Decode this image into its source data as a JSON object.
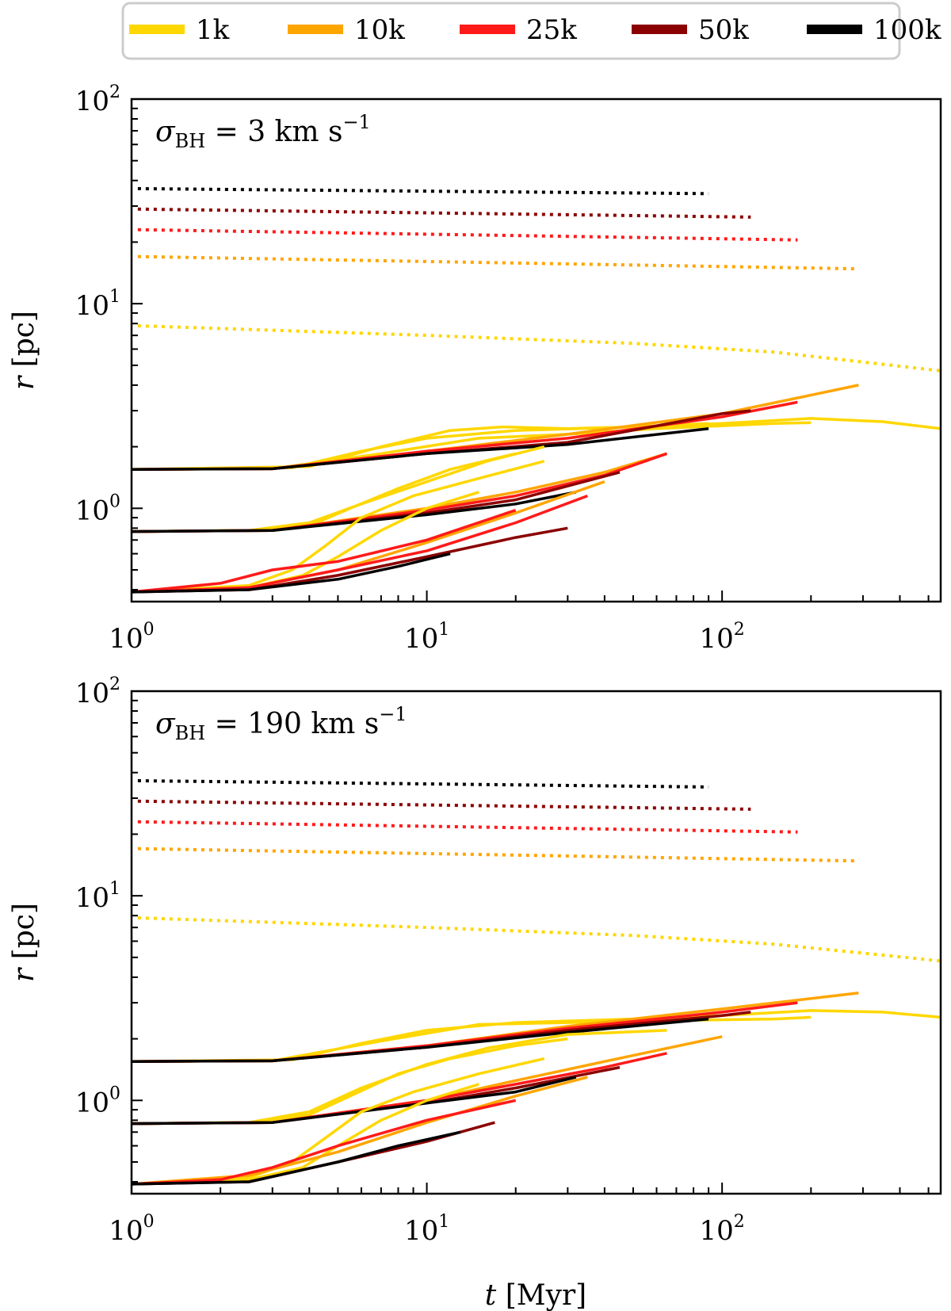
{
  "chart_data": {
    "type": "line",
    "legend": {
      "placement": "top-center",
      "entries": [
        {
          "label": "1k",
          "color": "#FFD700"
        },
        {
          "label": "10k",
          "color": "#FFA500"
        },
        {
          "label": "25k",
          "color": "#FF1A1A"
        },
        {
          "label": "50k",
          "color": "#8B0000"
        },
        {
          "label": "100k",
          "color": "#000000"
        }
      ]
    },
    "panels": [
      {
        "annotation": {
          "base": "σ",
          "sub": "BH",
          "rest": " = 3 km s",
          "sup": "−1"
        },
        "xlabel": "t [Myr]",
        "ylabel": "r [pc]",
        "xscale": "log",
        "yscale": "log",
        "xlim": [
          1,
          550
        ],
        "ylim": [
          0.35,
          100
        ],
        "xticks": [
          {
            "base": "10",
            "exp": "0"
          },
          {
            "base": "10",
            "exp": "1"
          },
          {
            "base": "10",
            "exp": "2"
          }
        ],
        "yticks": [
          {
            "base": "10",
            "exp": "0"
          },
          {
            "base": "10",
            "exp": "1"
          },
          {
            "base": "10",
            "exp": "2"
          }
        ],
        "dotted_series": [
          {
            "name": "100k",
            "x": [
              1.05,
              90
            ],
            "y": [
              36.5,
              34.5
            ]
          },
          {
            "name": "50k",
            "x": [
              1.05,
              125
            ],
            "y": [
              29,
              26.5
            ]
          },
          {
            "name": "25k",
            "x": [
              1.05,
              180
            ],
            "y": [
              23,
              20.5
            ]
          },
          {
            "name": "10k",
            "x": [
              1.05,
              290
            ],
            "y": [
              17,
              14.8
            ]
          },
          {
            "name": "1k",
            "x": [
              1.05,
              10,
              50,
              150,
              550
            ],
            "y": [
              7.8,
              7.0,
              6.4,
              5.8,
              4.7
            ]
          }
        ],
        "solid_series": [
          {
            "name": "1k",
            "x": [
              1.0,
              3.0,
              7.0,
              15.0,
              30.0,
              60.0,
              150.0,
              200.0
            ],
            "y": [
              1.55,
              1.56,
              1.85,
              2.2,
              2.3,
              2.45,
              2.6,
              2.62
            ]
          },
          {
            "name": "1k",
            "x": [
              1.0,
              4.0,
              7.0,
              12.0,
              18.0,
              30.0,
              50.0,
              90.0
            ],
            "y": [
              1.55,
              1.6,
              2.0,
              2.4,
              2.5,
              2.45,
              2.5,
              2.6
            ]
          },
          {
            "name": "1k",
            "x": [
              1.0,
              3.5,
              6.0,
              10.0,
              20.0,
              50.0,
              100.0,
              200.0,
              350.0,
              550.0
            ],
            "y": [
              1.55,
              1.58,
              1.9,
              2.2,
              2.4,
              2.5,
              2.6,
              2.75,
              2.65,
              2.45
            ]
          },
          {
            "name": "10k",
            "x": [
              1.0,
              3.0,
              10.0,
              30.0,
              100.0,
              290.0
            ],
            "y": [
              1.55,
              1.56,
              1.9,
              2.3,
              2.9,
              4.0
            ]
          },
          {
            "name": "25k",
            "x": [
              1.0,
              3.0,
              10.0,
              30.0,
              100.0,
              180.0
            ],
            "y": [
              1.55,
              1.56,
              1.9,
              2.2,
              2.8,
              3.3
            ]
          },
          {
            "name": "50k",
            "x": [
              1.0,
              3.0,
              10.0,
              30.0,
              100.0,
              125.0
            ],
            "y": [
              1.55,
              1.56,
              1.85,
              2.1,
              2.9,
              3.0
            ]
          },
          {
            "name": "100k",
            "x": [
              1.0,
              3.0,
              10.0,
              30.0,
              90.0
            ],
            "y": [
              1.55,
              1.56,
              1.85,
              2.05,
              2.45
            ]
          },
          {
            "name": "1k",
            "x": [
              1.0,
              2.5,
              4.0,
              6.0,
              10.0,
              16.0,
              25.0
            ],
            "y": [
              0.77,
              0.78,
              0.85,
              1.05,
              1.35,
              1.7,
              2.0
            ]
          },
          {
            "name": "1k",
            "x": [
              1.0,
              2.5,
              4.0,
              5.5,
              8.0,
              12.0,
              20.0
            ],
            "y": [
              0.77,
              0.78,
              0.82,
              1.0,
              1.25,
              1.55,
              1.85
            ]
          },
          {
            "name": "10k",
            "x": [
              1.0,
              3.0,
              10.0,
              20.0,
              40.0,
              65.0
            ],
            "y": [
              0.77,
              0.78,
              1.0,
              1.2,
              1.5,
              1.85
            ]
          },
          {
            "name": "25k",
            "x": [
              1.0,
              3.0,
              10.0,
              20.0,
              40.0,
              65.0
            ],
            "y": [
              0.77,
              0.78,
              0.98,
              1.15,
              1.45,
              1.85
            ]
          },
          {
            "name": "50k",
            "x": [
              1.0,
              3.0,
              10.0,
              20.0,
              45.0
            ],
            "y": [
              0.77,
              0.78,
              0.95,
              1.1,
              1.5
            ]
          },
          {
            "name": "100k",
            "x": [
              1.0,
              3.0,
              10.0,
              20.0,
              32.0
            ],
            "y": [
              0.77,
              0.78,
              0.93,
              1.05,
              1.2
            ]
          },
          {
            "name": "1k",
            "x": [
              1.0,
              2.5,
              3.5,
              4.5,
              6.0,
              9.0,
              15.0,
              25.0
            ],
            "y": [
              0.39,
              0.42,
              0.5,
              0.65,
              0.9,
              1.15,
              1.4,
              1.7
            ]
          },
          {
            "name": "1k",
            "x": [
              1.0,
              2.5,
              3.8,
              5.0,
              7.0,
              10.0,
              15.0
            ],
            "y": [
              0.39,
              0.41,
              0.47,
              0.58,
              0.78,
              1.0,
              1.2
            ]
          },
          {
            "name": "10k",
            "x": [
              1.0,
              2.5,
              5.0,
              10.0,
              20.0,
              40.0
            ],
            "y": [
              0.39,
              0.41,
              0.5,
              0.68,
              0.95,
              1.35
            ]
          },
          {
            "name": "25k",
            "x": [
              1.0,
              2.0,
              3.0,
              5.0,
              10.0,
              20.0
            ],
            "y": [
              0.39,
              0.43,
              0.5,
              0.55,
              0.7,
              0.98
            ]
          },
          {
            "name": "25k",
            "x": [
              1.0,
              2.5,
              5.0,
              10.0,
              20.0,
              35.0
            ],
            "y": [
              0.39,
              0.41,
              0.5,
              0.62,
              0.85,
              1.15
            ]
          },
          {
            "name": "50k",
            "x": [
              1.0,
              2.5,
              5.0,
              10.0,
              20.0,
              30.0
            ],
            "y": [
              0.39,
              0.4,
              0.47,
              0.58,
              0.72,
              0.8
            ]
          },
          {
            "name": "100k",
            "x": [
              1.0,
              2.5,
              5.0,
              8.0,
              12.0
            ],
            "y": [
              0.39,
              0.4,
              0.45,
              0.52,
              0.6
            ]
          }
        ]
      },
      {
        "annotation": {
          "base": "σ",
          "sub": "BH",
          "rest": " = 190 km s",
          "sup": "−1"
        },
        "xlabel": "t [Myr]",
        "ylabel": "r [pc]",
        "xscale": "log",
        "yscale": "log",
        "xlim": [
          1,
          550
        ],
        "ylim": [
          0.35,
          100
        ],
        "xticks": [
          {
            "base": "10",
            "exp": "0"
          },
          {
            "base": "10",
            "exp": "1"
          },
          {
            "base": "10",
            "exp": "2"
          }
        ],
        "yticks": [
          {
            "base": "10",
            "exp": "0"
          },
          {
            "base": "10",
            "exp": "1"
          },
          {
            "base": "10",
            "exp": "2"
          }
        ],
        "dotted_series": [
          {
            "name": "100k",
            "x": [
              1.05,
              90
            ],
            "y": [
              36.5,
              34
            ]
          },
          {
            "name": "50k",
            "x": [
              1.05,
              125
            ],
            "y": [
              29,
              26.5
            ]
          },
          {
            "name": "25k",
            "x": [
              1.05,
              180
            ],
            "y": [
              23,
              20.5
            ]
          },
          {
            "name": "10k",
            "x": [
              1.05,
              290
            ],
            "y": [
              17,
              14.8
            ]
          },
          {
            "name": "1k",
            "x": [
              1.05,
              10,
              50,
              150,
              550
            ],
            "y": [
              7.8,
              7.0,
              6.4,
              5.8,
              4.8
            ]
          }
        ],
        "solid_series": [
          {
            "name": "1k",
            "x": [
              1.0,
              3.0,
              7.0,
              15.0,
              30.0,
              60.0,
              150.0,
              200.0
            ],
            "y": [
              1.55,
              1.56,
              1.95,
              2.35,
              2.4,
              2.45,
              2.5,
              2.55
            ]
          },
          {
            "name": "1k",
            "x": [
              1.0,
              3.5,
              6.0,
              10.0,
              20.0,
              50.0,
              100.0,
              200.0,
              350.0,
              550.0
            ],
            "y": [
              1.55,
              1.58,
              1.9,
              2.2,
              2.4,
              2.5,
              2.6,
              2.75,
              2.7,
              2.55
            ]
          },
          {
            "name": "10k",
            "x": [
              1.0,
              3.0,
              10.0,
              30.0,
              100.0,
              290.0
            ],
            "y": [
              1.55,
              1.56,
              1.85,
              2.3,
              2.8,
              3.35
            ]
          },
          {
            "name": "25k",
            "x": [
              1.0,
              3.0,
              10.0,
              30.0,
              100.0,
              180.0
            ],
            "y": [
              1.55,
              1.56,
              1.85,
              2.25,
              2.7,
              3.0
            ]
          },
          {
            "name": "50k",
            "x": [
              1.0,
              3.0,
              10.0,
              30.0,
              100.0,
              125.0
            ],
            "y": [
              1.55,
              1.56,
              1.82,
              2.2,
              2.6,
              2.7
            ]
          },
          {
            "name": "100k",
            "x": [
              1.0,
              3.0,
              10.0,
              30.0,
              90.0
            ],
            "y": [
              1.55,
              1.56,
              1.82,
              2.15,
              2.5
            ]
          },
          {
            "name": "1k",
            "x": [
              1.0,
              2.5,
              4.0,
              6.0,
              10.0,
              16.0,
              30.0,
              65.0
            ],
            "y": [
              0.77,
              0.78,
              0.88,
              1.15,
              1.5,
              1.8,
              2.1,
              2.2
            ]
          },
          {
            "name": "1k",
            "x": [
              1.0,
              2.5,
              4.0,
              5.5,
              8.0,
              12.0,
              20.0,
              30.0
            ],
            "y": [
              0.77,
              0.78,
              0.85,
              1.05,
              1.35,
              1.6,
              1.85,
              2.0
            ]
          },
          {
            "name": "10k",
            "x": [
              1.0,
              3.0,
              10.0,
              20.0,
              40.0,
              100.0
            ],
            "y": [
              0.77,
              0.78,
              1.0,
              1.25,
              1.55,
              2.05
            ]
          },
          {
            "name": "25k",
            "x": [
              1.0,
              3.0,
              10.0,
              20.0,
              40.0,
              65.0
            ],
            "y": [
              0.77,
              0.78,
              1.0,
              1.2,
              1.45,
              1.7
            ]
          },
          {
            "name": "50k",
            "x": [
              1.0,
              3.0,
              10.0,
              20.0,
              45.0
            ],
            "y": [
              0.77,
              0.78,
              0.97,
              1.15,
              1.45
            ]
          },
          {
            "name": "100k",
            "x": [
              1.0,
              3.0,
              10.0,
              20.0,
              32.0
            ],
            "y": [
              0.77,
              0.78,
              0.97,
              1.1,
              1.3
            ]
          },
          {
            "name": "1k",
            "x": [
              1.0,
              2.5,
              3.5,
              4.5,
              6.0,
              9.0,
              15.0,
              25.0
            ],
            "y": [
              0.39,
              0.42,
              0.5,
              0.65,
              0.88,
              1.1,
              1.35,
              1.6
            ]
          },
          {
            "name": "1k",
            "x": [
              1.0,
              2.5,
              3.8,
              5.0,
              7.0,
              10.0,
              15.0
            ],
            "y": [
              0.39,
              0.41,
              0.47,
              0.6,
              0.8,
              1.0,
              1.2
            ]
          },
          {
            "name": "10k",
            "x": [
              1.0,
              2.5,
              5.0,
              10.0,
              20.0,
              35.0
            ],
            "y": [
              0.39,
              0.43,
              0.56,
              0.78,
              1.05,
              1.3
            ]
          },
          {
            "name": "25k",
            "x": [
              1.0,
              2.0,
              3.0,
              5.0,
              10.0,
              20.0
            ],
            "y": [
              0.39,
              0.41,
              0.47,
              0.6,
              0.8,
              1.0
            ]
          },
          {
            "name": "50k",
            "x": [
              1.0,
              2.5,
              5.0,
              10.0,
              17.0
            ],
            "y": [
              0.39,
              0.4,
              0.5,
              0.63,
              0.78
            ]
          },
          {
            "name": "100k",
            "x": [
              1.0,
              2.5,
              5.0,
              8.0,
              13.0
            ],
            "y": [
              0.39,
              0.4,
              0.5,
              0.6,
              0.7
            ]
          }
        ]
      }
    ]
  }
}
